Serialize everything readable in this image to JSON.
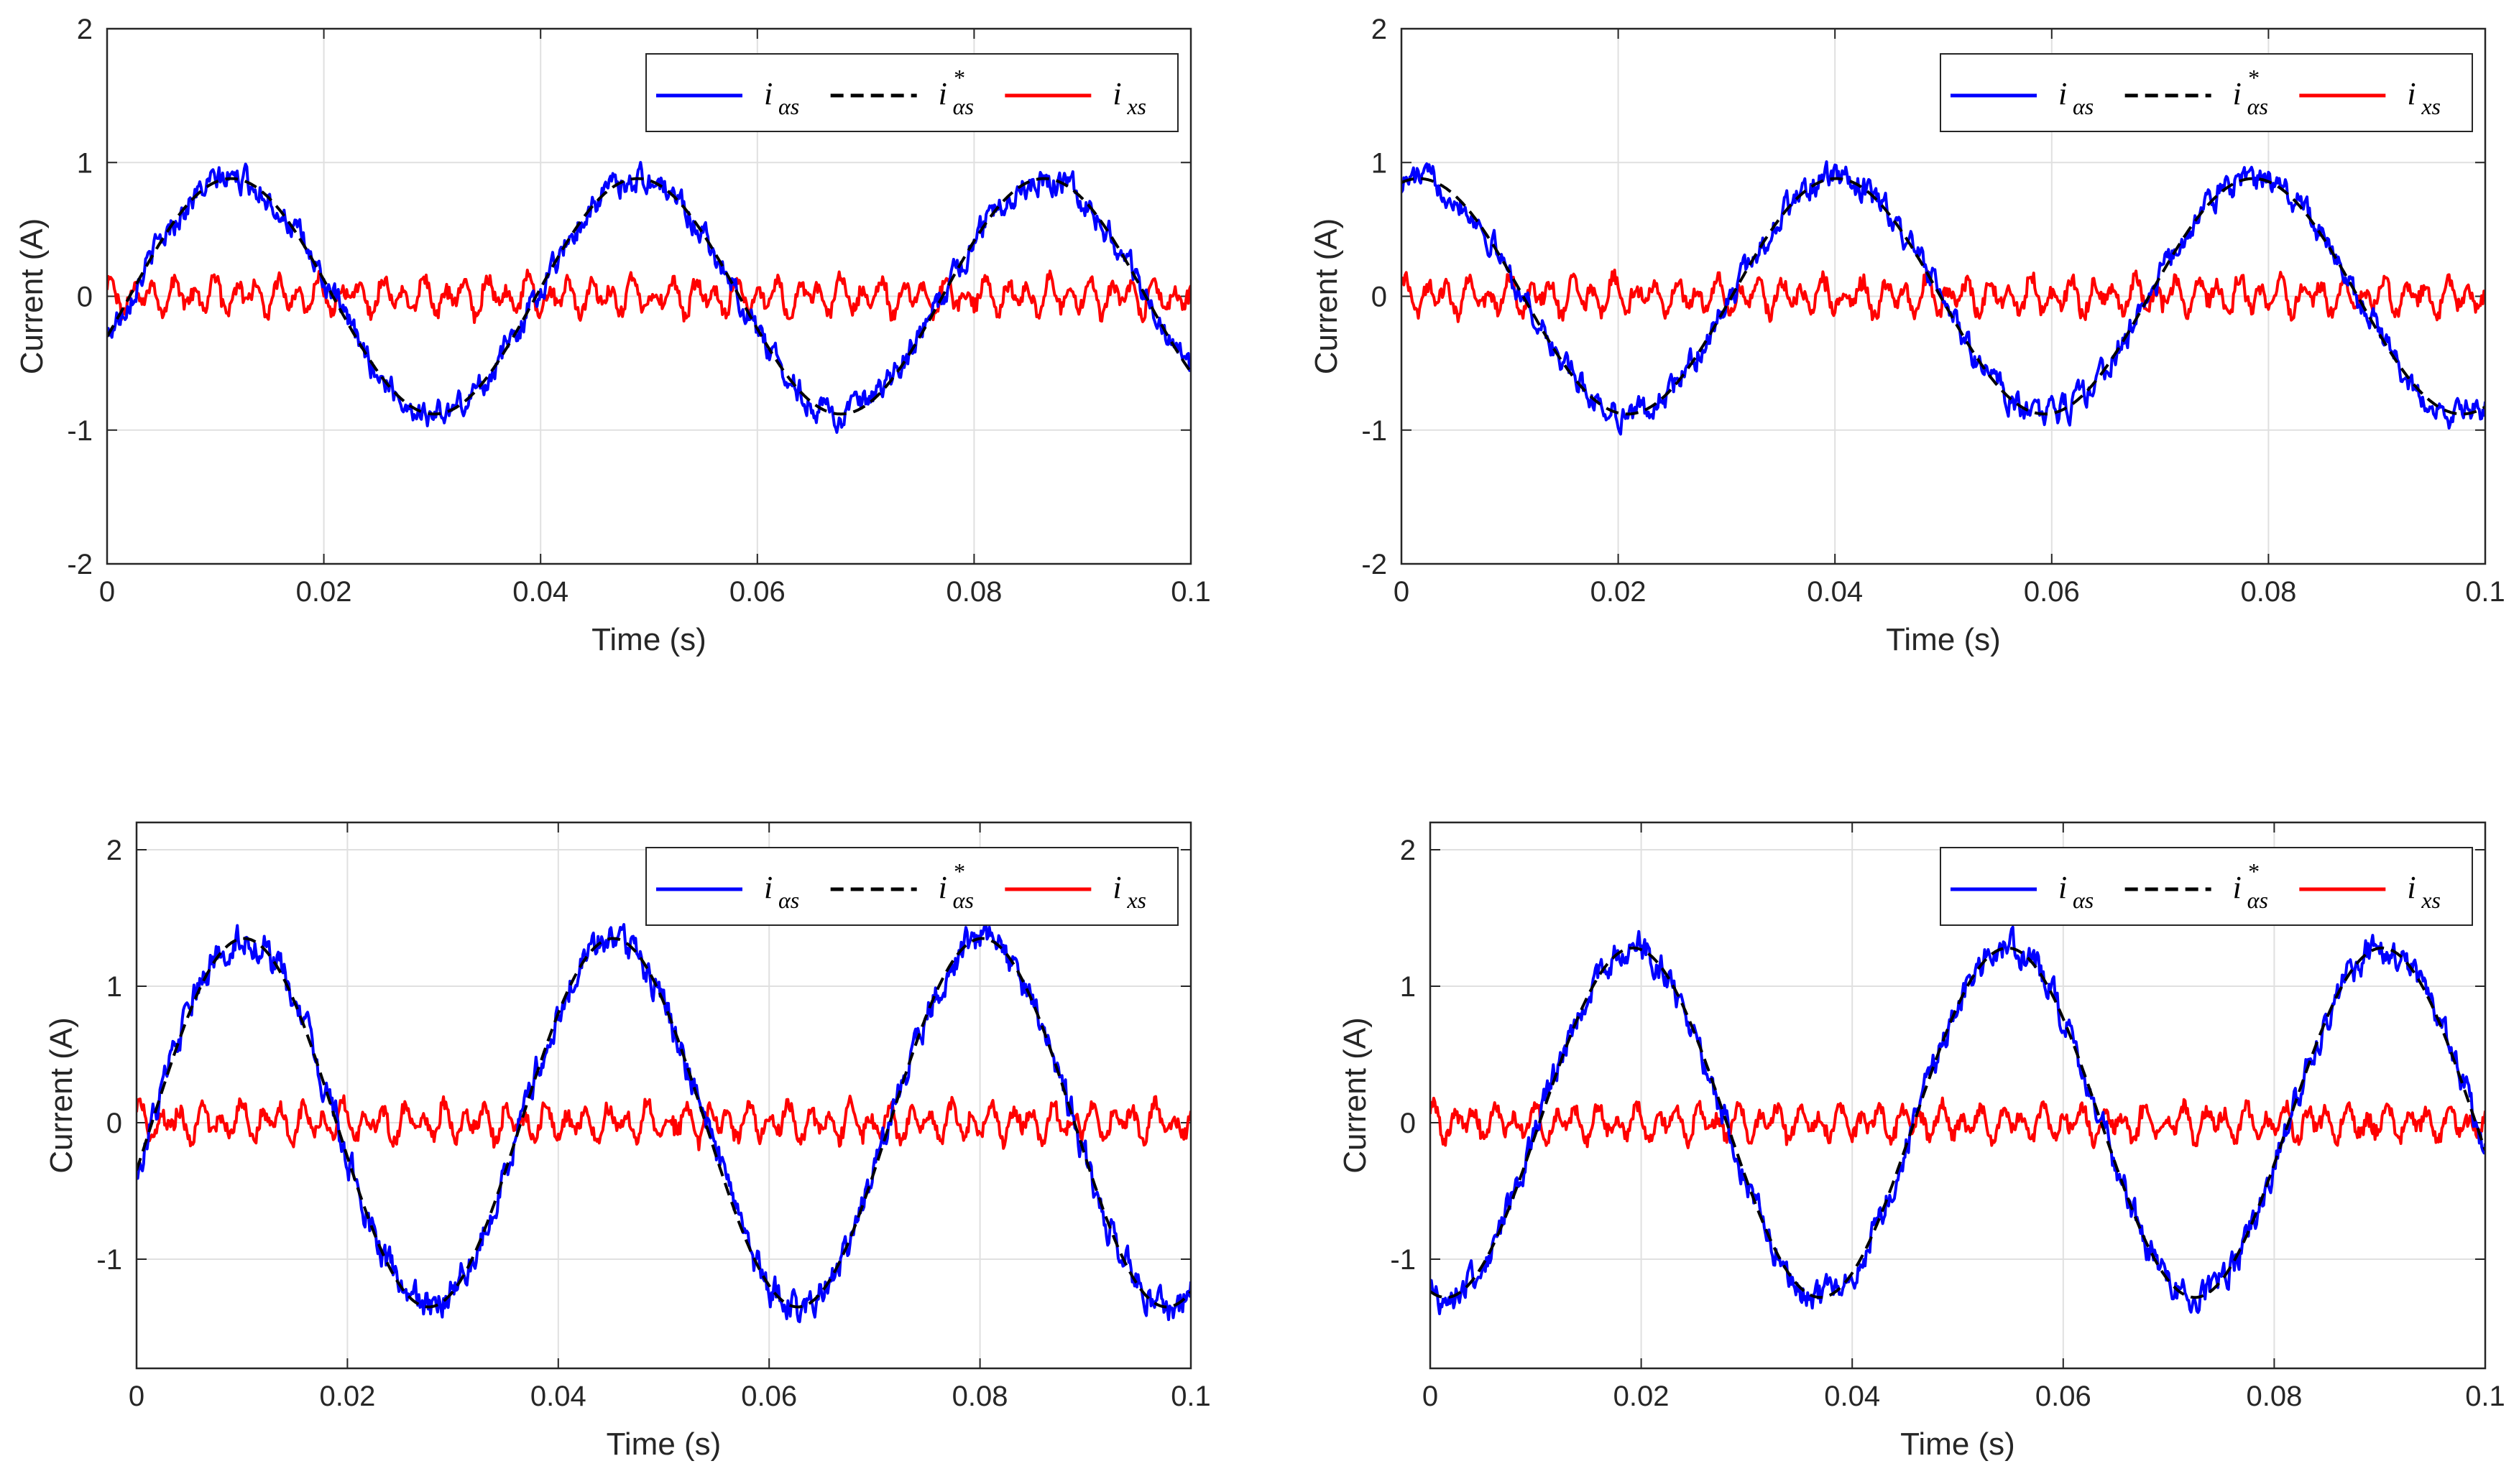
{
  "figure": {
    "description_count": 4
  },
  "chart_data": [
    {
      "type": "line",
      "panel": "top-left",
      "xlabel": "Time (s)",
      "ylabel": "Current (A)",
      "xlim": [
        0,
        0.1
      ],
      "ylim": [
        -2,
        2
      ],
      "xticks": [
        "0",
        "0.02",
        "0.04",
        "0.06",
        "0.08",
        "0.1"
      ],
      "yticks": [
        "-2",
        "-1",
        "0",
        "1",
        "2"
      ],
      "ytick_values": [
        -2,
        -1,
        0,
        1,
        2
      ],
      "grid": true,
      "legend_placement": "top-right",
      "legend": [
        {
          "name": "i",
          "sub": "αs",
          "sup": "",
          "color": "#0000ff",
          "style": "solid"
        },
        {
          "name": "i",
          "sub": "αs",
          "sup": "*",
          "color": "#000000",
          "style": "dashed"
        },
        {
          "name": "i",
          "sub": "xs",
          "sup": "",
          "color": "#ff0000",
          "style": "solid"
        }
      ],
      "series": [
        {
          "name": "i_αs_ref",
          "color": "#000000",
          "style": "dashed",
          "amplitude": 0.88,
          "period_s": 0.0375,
          "phase_deg": -20,
          "noise": 0
        },
        {
          "name": "i_αs",
          "color": "#0000ff",
          "style": "solid",
          "amplitude": 0.88,
          "period_s": 0.0375,
          "phase_deg": -20,
          "noise": 0.1
        },
        {
          "name": "i_xs",
          "color": "#ff0000",
          "style": "solid",
          "amplitude": 0.0,
          "period_s": 0.0375,
          "phase_deg": 0,
          "noise": 0.17
        }
      ]
    },
    {
      "type": "line",
      "panel": "top-right",
      "xlabel": "Time (s)",
      "ylabel": "Current (A)",
      "xlim": [
        0,
        0.1
      ],
      "ylim": [
        -2,
        2
      ],
      "xticks": [
        "0",
        "0.02",
        "0.04",
        "0.06",
        "0.08",
        "0.1"
      ],
      "yticks": [
        "-2",
        "-1",
        "0",
        "1",
        "2"
      ],
      "ytick_values": [
        -2,
        -1,
        0,
        1,
        2
      ],
      "grid": true,
      "legend_placement": "top-right",
      "legend": [
        {
          "name": "i",
          "sub": "αs",
          "sup": "",
          "color": "#0000ff",
          "style": "solid"
        },
        {
          "name": "i",
          "sub": "αs",
          "sup": "*",
          "color": "#000000",
          "style": "dashed"
        },
        {
          "name": "i",
          "sub": "xs",
          "sup": "",
          "color": "#ff0000",
          "style": "solid"
        }
      ],
      "series": [
        {
          "name": "i_αs_ref",
          "color": "#000000",
          "style": "dashed",
          "amplitude": 0.88,
          "period_s": 0.0385,
          "phase_deg": 75,
          "noise": 0
        },
        {
          "name": "i_αs",
          "color": "#0000ff",
          "style": "solid",
          "amplitude": 0.88,
          "period_s": 0.0385,
          "phase_deg": 75,
          "noise": 0.1
        },
        {
          "name": "i_xs",
          "color": "#ff0000",
          "style": "solid",
          "amplitude": 0.0,
          "period_s": 0.0385,
          "phase_deg": 0,
          "noise": 0.17
        }
      ]
    },
    {
      "type": "line",
      "panel": "bottom-left",
      "xlabel": "Time (s)",
      "ylabel": "Current (A)",
      "xlim": [
        0,
        0.1
      ],
      "ylim": [
        -1.8,
        2.2
      ],
      "xticks": [
        "0",
        "0.02",
        "0.04",
        "0.06",
        "0.08",
        "0.1"
      ],
      "yticks": [
        "-1",
        "0",
        "1",
        "2"
      ],
      "ytick_values": [
        -1,
        0,
        1,
        2
      ],
      "grid": true,
      "legend_placement": "top-right",
      "legend": [
        {
          "name": "i",
          "sub": "αs",
          "sup": "",
          "color": "#0000ff",
          "style": "solid"
        },
        {
          "name": "i",
          "sub": "αs",
          "sup": "*",
          "color": "#000000",
          "style": "dashed"
        },
        {
          "name": "i",
          "sub": "xs",
          "sup": "",
          "color": "#ff0000",
          "style": "solid"
        }
      ],
      "series": [
        {
          "name": "i_αs_ref",
          "color": "#000000",
          "style": "dashed",
          "amplitude": 1.35,
          "period_s": 0.035,
          "phase_deg": -15,
          "noise": 0
        },
        {
          "name": "i_αs",
          "color": "#0000ff",
          "style": "solid",
          "amplitude": 1.35,
          "period_s": 0.035,
          "phase_deg": -15,
          "noise": 0.12
        },
        {
          "name": "i_xs",
          "color": "#ff0000",
          "style": "solid",
          "amplitude": 0.0,
          "period_s": 0.035,
          "phase_deg": 0,
          "noise": 0.17
        }
      ]
    },
    {
      "type": "line",
      "panel": "bottom-right",
      "xlabel": "Time (s)",
      "ylabel": "Current (A)",
      "xlim": [
        0,
        0.1
      ],
      "ylim": [
        -1.8,
        2.2
      ],
      "xticks": [
        "0",
        "0.02",
        "0.04",
        "0.06",
        "0.08",
        "0.1"
      ],
      "yticks": [
        "-1",
        "0",
        "1",
        "2"
      ],
      "ytick_values": [
        -1,
        0,
        1,
        2
      ],
      "grid": true,
      "legend_placement": "top-right",
      "legend": [
        {
          "name": "i",
          "sub": "αs",
          "sup": "",
          "color": "#0000ff",
          "style": "solid"
        },
        {
          "name": "i",
          "sub": "αs",
          "sup": "*",
          "color": "#000000",
          "style": "dashed"
        },
        {
          "name": "i",
          "sub": "xs",
          "sup": "",
          "color": "#ff0000",
          "style": "solid"
        }
      ],
      "series": [
        {
          "name": "i_αs_ref",
          "color": "#000000",
          "style": "dashed",
          "amplitude": 1.28,
          "period_s": 0.0355,
          "phase_deg": -105,
          "noise": 0
        },
        {
          "name": "i_αs",
          "color": "#0000ff",
          "style": "solid",
          "amplitude": 1.28,
          "period_s": 0.0355,
          "phase_deg": -105,
          "noise": 0.11
        },
        {
          "name": "i_xs",
          "color": "#ff0000",
          "style": "solid",
          "amplitude": 0.0,
          "period_s": 0.0355,
          "phase_deg": 0,
          "noise": 0.16
        }
      ]
    }
  ]
}
